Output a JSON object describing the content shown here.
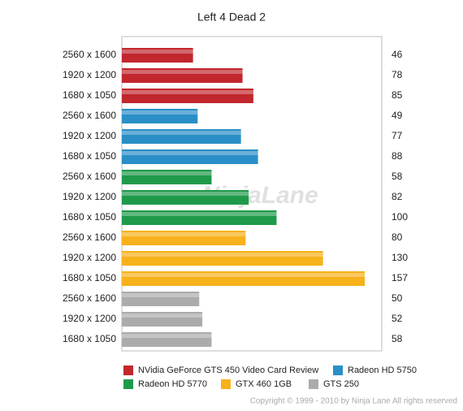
{
  "chart_data": {
    "type": "bar",
    "orientation": "horizontal",
    "title": "Left 4 Dead 2",
    "watermark": "NinjaLane",
    "copyright": "Copyright © 1999 - 2010 by Ninja Lane All rights reserved",
    "categories": [
      "2560 x 1600",
      "1920 x 1200",
      "1680 x 1050",
      "2560 x 1600",
      "1920 x 1200",
      "1680 x 1050",
      "2560 x 1600",
      "1920 x 1200",
      "1680 x 1050",
      "2560 x 1600",
      "1920 x 1200",
      "1680 x 1050",
      "2560 x 1600",
      "1920 x 1200",
      "1680 x 1050"
    ],
    "series": [
      {
        "name": "NVidia GeForce GTS 450 Video Card Review",
        "color": "#c1272d",
        "values": [
          46,
          78,
          85,
          null,
          null,
          null,
          null,
          null,
          null,
          null,
          null,
          null,
          null,
          null,
          null
        ]
      },
      {
        "name": "Radeon HD 5750",
        "color": "#2a8fc7",
        "values": [
          null,
          null,
          null,
          49,
          77,
          88,
          null,
          null,
          null,
          null,
          null,
          null,
          null,
          null,
          null
        ]
      },
      {
        "name": "Radeon HD 5770",
        "color": "#1f9a4b",
        "values": [
          null,
          null,
          null,
          null,
          null,
          null,
          58,
          82,
          100,
          null,
          null,
          null,
          null,
          null,
          null
        ]
      },
      {
        "name": "GTX 460 1GB",
        "color": "#f7b11b",
        "values": [
          null,
          null,
          null,
          null,
          null,
          null,
          null,
          null,
          null,
          80,
          130,
          157,
          null,
          null,
          null
        ]
      },
      {
        "name": "GTS 250",
        "color": "#ababab",
        "values": [
          null,
          null,
          null,
          null,
          null,
          null,
          null,
          null,
          null,
          null,
          null,
          null,
          50,
          52,
          58
        ]
      }
    ],
    "xlim": [
      0,
      168
    ]
  }
}
